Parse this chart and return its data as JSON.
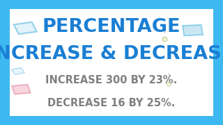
{
  "bg_outer": "#3db8f0",
  "bg_inner": "#ffffff",
  "border_color": "#3db8f0",
  "title_line1": "PERCENTAGE",
  "title_line2": "INCREASE & DECREASE",
  "subtitle1": "INCREASE 300 BY 23%.",
  "subtitle2": "DECREASE 16 BY 25%.",
  "title_color": "#1a7fd4",
  "subtitle_color": "#808080",
  "border_width": 8,
  "title_fontsize": 19.5,
  "subtitle_fontsize": 10.5,
  "fig_width": 3.2,
  "fig_height": 1.8,
  "dpi": 100
}
